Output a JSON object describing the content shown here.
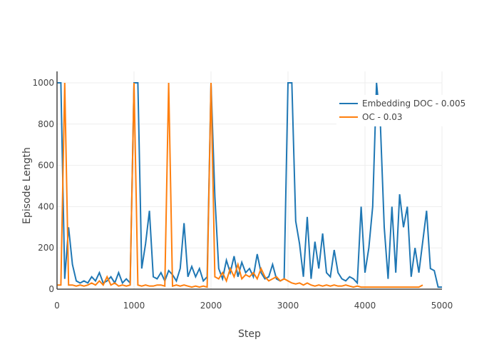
{
  "chart_data": {
    "type": "line",
    "title": "",
    "xlabel": "Step",
    "ylabel": "Episode Length",
    "xlim": [
      0,
      5000
    ],
    "ylim": [
      0,
      1050
    ],
    "xticks": [
      0,
      1000,
      2000,
      3000,
      4000,
      5000
    ],
    "yticks": [
      0,
      200,
      400,
      600,
      800,
      1000
    ],
    "grid": true,
    "legend_position": "top-right",
    "x_step": 50,
    "series": [
      {
        "name": "Embedding DOC - 0.005",
        "color": "#1f77b4",
        "values": [
          1000,
          1000,
          50,
          300,
          120,
          40,
          30,
          40,
          30,
          60,
          40,
          80,
          30,
          40,
          60,
          30,
          80,
          30,
          50,
          30,
          1000,
          1000,
          100,
          220,
          380,
          60,
          50,
          80,
          40,
          90,
          70,
          40,
          100,
          320,
          60,
          110,
          60,
          100,
          40,
          60,
          1000,
          450,
          100,
          50,
          140,
          80,
          160,
          60,
          130,
          80,
          100,
          60,
          170,
          80,
          50,
          60,
          120,
          50,
          40,
          50,
          1000,
          1000,
          330,
          220,
          60,
          350,
          50,
          230,
          100,
          270,
          80,
          60,
          190,
          80,
          50,
          40,
          60,
          50,
          30,
          400,
          80,
          200,
          400,
          1000,
          800,
          300,
          50,
          400,
          80,
          460,
          300,
          400,
          60,
          200,
          80,
          230,
          380,
          100,
          90,
          10,
          10
        ]
      },
      {
        "name": "OC - 0.03",
        "color": "#ff7f0e",
        "values": [
          20,
          20,
          1000,
          20,
          20,
          15,
          20,
          15,
          20,
          30,
          20,
          40,
          20,
          60,
          20,
          30,
          15,
          20,
          15,
          20,
          1000,
          20,
          15,
          20,
          15,
          15,
          20,
          20,
          15,
          1000,
          15,
          20,
          15,
          20,
          15,
          10,
          15,
          10,
          15,
          10,
          1000,
          60,
          50,
          80,
          40,
          100,
          60,
          120,
          50,
          70,
          60,
          80,
          50,
          100,
          60,
          40,
          50,
          60,
          40,
          50,
          40,
          30,
          25,
          30,
          20,
          30,
          20,
          15,
          20,
          15,
          20,
          15,
          20,
          15,
          15,
          20,
          15,
          10,
          15,
          10,
          10,
          10,
          10,
          10,
          10,
          10,
          10,
          10,
          10,
          10,
          10,
          10,
          10,
          10,
          10,
          20
        ]
      }
    ]
  }
}
